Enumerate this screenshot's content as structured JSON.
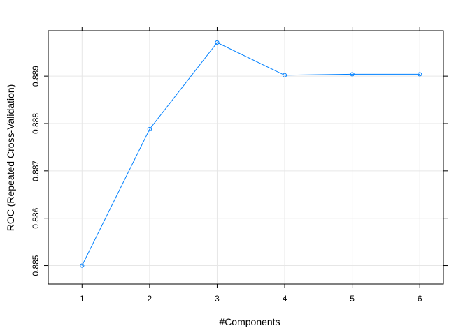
{
  "chart_data": {
    "type": "line",
    "xlabel": "#Components",
    "ylabel": "ROC (Repeated Cross-Validation)",
    "x": [
      1,
      2,
      3,
      4,
      5,
      6
    ],
    "series": [
      {
        "values": [
          0.885,
          0.88788,
          0.88971,
          0.88902,
          0.88904,
          0.88904
        ]
      }
    ],
    "xlim": [
      0.5,
      6.35
    ],
    "ylim": [
      0.88461,
      0.88996
    ],
    "xticks": [
      "1",
      "2",
      "3",
      "4",
      "5",
      "6"
    ],
    "yticks": [
      "0.885",
      "0.886",
      "0.887",
      "0.888",
      "0.889"
    ],
    "grid": true,
    "legend": "none",
    "line_color": "#0080ff",
    "grid_color": "#e6e6e6"
  }
}
